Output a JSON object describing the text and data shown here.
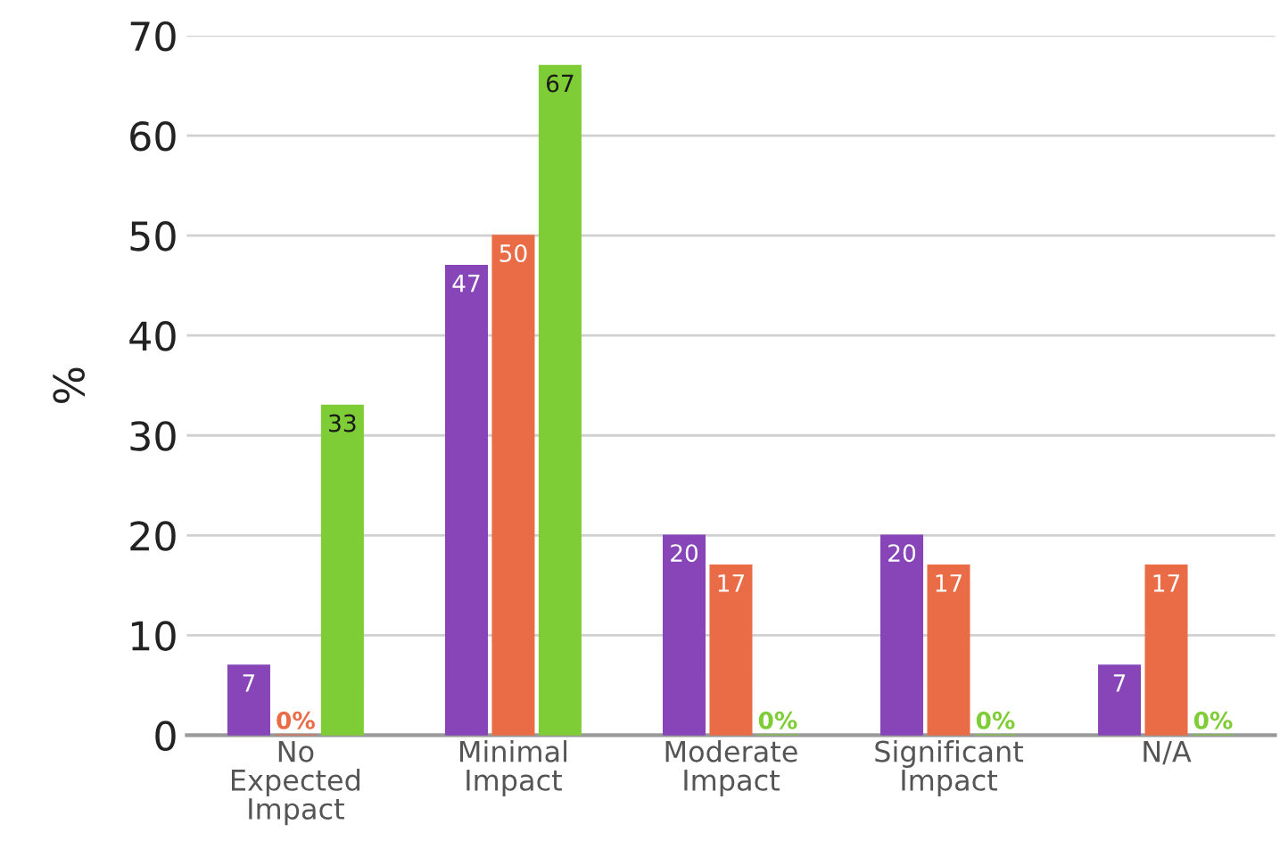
{
  "chart_data": {
    "type": "bar",
    "ylabel": "%",
    "categories": [
      "No\nExpected\nImpact",
      "Minimal\nImpact",
      "Moderate\nImpact",
      "Significant\nImpact",
      "N/A"
    ],
    "series": [
      {
        "color": "#8745b8",
        "values": [
          7,
          47,
          20,
          20,
          7
        ],
        "value_labels": [
          "7",
          "47",
          "20",
          "20",
          "7"
        ]
      },
      {
        "color": "#ea6c47",
        "values": [
          0,
          50,
          17,
          17,
          17
        ],
        "value_labels": [
          "0%",
          "50",
          "17",
          "17",
          "17"
        ]
      },
      {
        "color": "#7fcd36",
        "values": [
          33,
          67,
          0,
          0,
          0
        ],
        "value_labels": [
          "33",
          "67",
          "0%",
          "0%",
          "0%"
        ]
      }
    ],
    "ylim": [
      0,
      70
    ],
    "yticks": [
      0,
      10,
      20,
      30,
      40,
      50,
      60,
      70
    ],
    "grid": "y",
    "legend": false
  }
}
